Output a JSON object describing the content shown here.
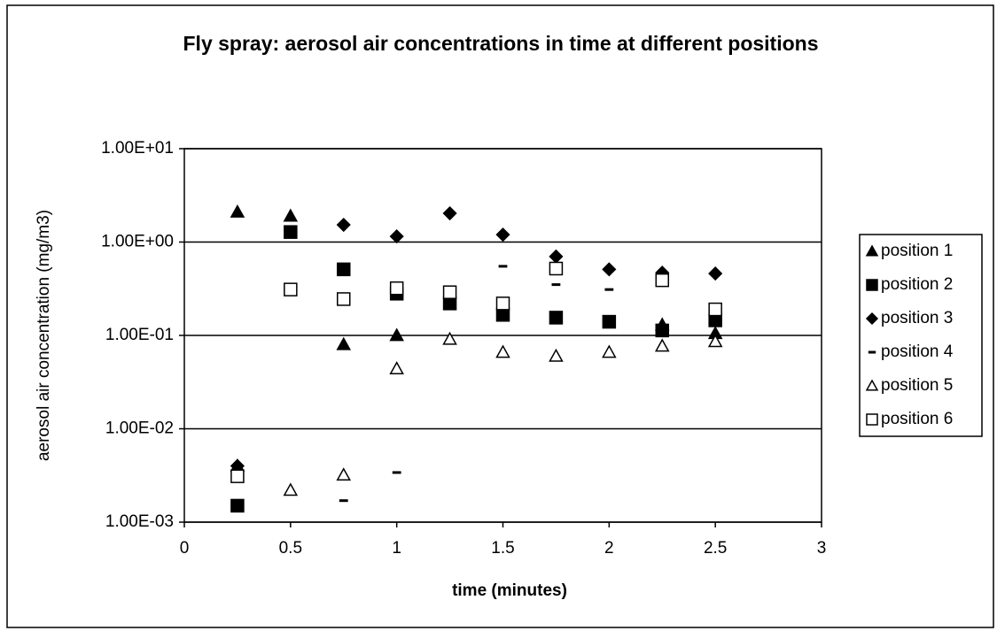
{
  "chart_data": {
    "type": "scatter",
    "title": "Fly spray: aerosol air concentrations in time at different positions",
    "x_label": "time (minutes)",
    "y_label": "aerosol air concentration (mg/m3)",
    "log_y": true,
    "grid": true,
    "legend": "right",
    "xlim": [
      0,
      3
    ],
    "xticks": [
      0,
      0.5,
      1,
      1.5,
      2,
      2.5,
      3
    ],
    "ylim": [
      0.001,
      10
    ],
    "yticks": [
      {
        "value": 0.001,
        "label": "1.00E-03"
      },
      {
        "value": 0.01,
        "label": "1.00E-02"
      },
      {
        "value": 0.1,
        "label": "1.00E-01"
      },
      {
        "value": 1,
        "label": "1.00E+00"
      },
      {
        "value": 10,
        "label": "1.00E+01"
      }
    ],
    "series": [
      {
        "name": "position 1",
        "color": "#000000",
        "marker": "triangle-filled",
        "x": [
          0.25,
          0.25,
          0.5,
          0.75,
          1,
          2.25,
          2.5
        ],
        "values": [
          2.1,
          0.004,
          1.9,
          0.08,
          0.1,
          0.13,
          0.105
        ]
      },
      {
        "name": "position 2",
        "color": "#000000",
        "marker": "square-filled",
        "x": [
          0.25,
          0.5,
          0.75,
          1,
          1.25,
          1.5,
          1.75,
          2,
          2.25,
          2.5
        ],
        "values": [
          0.0015,
          1.28,
          0.51,
          0.28,
          0.22,
          0.166,
          0.155,
          0.14,
          0.113,
          0.145
        ]
      },
      {
        "name": "position 3",
        "color": "#000000",
        "marker": "diamond-filled",
        "x": [
          0.25,
          0.75,
          1,
          1.25,
          1.5,
          1.75,
          2,
          2.25,
          2.5
        ],
        "values": [
          0.004,
          1.53,
          1.15,
          2.03,
          1.2,
          0.7,
          0.51,
          0.47,
          0.46
        ]
      },
      {
        "name": "position 4",
        "color": "#000000",
        "marker": "dash",
        "x": [
          0.75,
          1,
          1.5,
          1.75,
          2,
          2.5
        ],
        "values": [
          0.0017,
          0.0034,
          0.55,
          0.35,
          0.31,
          0.18
        ]
      },
      {
        "name": "position 5",
        "color": "#000000",
        "marker": "triangle-open",
        "x": [
          0.5,
          0.75,
          1,
          1.25,
          1.5,
          1.75,
          2,
          2.25,
          2.5
        ],
        "values": [
          0.0022,
          0.0032,
          0.044,
          0.091,
          0.066,
          0.06,
          0.066,
          0.077,
          0.086
        ]
      },
      {
        "name": "position 6",
        "color": "#000000",
        "marker": "square-open",
        "x": [
          0.25,
          0.5,
          0.75,
          1,
          1.25,
          1.5,
          1.75,
          2.25,
          2.5
        ],
        "values": [
          0.0031,
          0.31,
          0.245,
          0.32,
          0.29,
          0.22,
          0.52,
          0.39,
          0.19
        ]
      }
    ]
  }
}
